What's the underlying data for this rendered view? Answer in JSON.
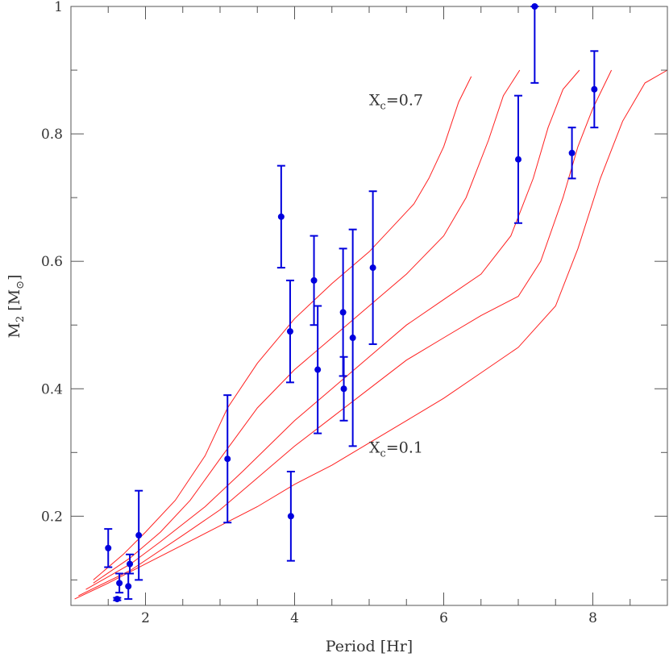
{
  "chart_data": {
    "type": "scatter",
    "xlabel": "Period [Hr]",
    "ylabel_main": "M",
    "ylabel_sub": "2",
    "ylabel_unit_open": " [M",
    "ylabel_unit_sub": "⊙",
    "ylabel_unit_close": "]",
    "xlim": [
      1.0,
      9.0
    ],
    "ylim": [
      0.06,
      1.0
    ],
    "x_ticks": [
      2,
      4,
      6,
      8
    ],
    "y_ticks": [
      0.2,
      0.4,
      0.6,
      0.8,
      1.0
    ],
    "x_tick_labels": [
      "2",
      "4",
      "6",
      "8"
    ],
    "y_tick_labels": [
      "0.2",
      "0.4",
      "0.6",
      "0.8",
      "1"
    ],
    "annotations": [
      {
        "main": "X",
        "sub": "c",
        "rest": "=0.7",
        "x": 5.0,
        "y": 0.845
      },
      {
        "main": "X",
        "sub": "c",
        "rest": "=0.1",
        "x": 5.0,
        "y": 0.3
      }
    ],
    "point_color": "#0000dd",
    "curve_color": "#ff2020",
    "points": [
      {
        "x": 1.5,
        "y": 0.15,
        "lo": 0.12,
        "hi": 0.18
      },
      {
        "x": 1.62,
        "y": 0.07,
        "lo": 0.068,
        "hi": 0.072
      },
      {
        "x": 1.65,
        "y": 0.095,
        "lo": 0.08,
        "hi": 0.11
      },
      {
        "x": 1.77,
        "y": 0.09,
        "lo": 0.07,
        "hi": 0.11
      },
      {
        "x": 1.79,
        "y": 0.125,
        "lo": 0.11,
        "hi": 0.14
      },
      {
        "x": 1.91,
        "y": 0.17,
        "lo": 0.1,
        "hi": 0.24
      },
      {
        "x": 3.1,
        "y": 0.29,
        "lo": 0.19,
        "hi": 0.39
      },
      {
        "x": 3.82,
        "y": 0.67,
        "lo": 0.59,
        "hi": 0.75
      },
      {
        "x": 3.94,
        "y": 0.49,
        "lo": 0.41,
        "hi": 0.57
      },
      {
        "x": 3.95,
        "y": 0.2,
        "lo": 0.13,
        "hi": 0.27
      },
      {
        "x": 4.26,
        "y": 0.57,
        "lo": 0.5,
        "hi": 0.64
      },
      {
        "x": 4.31,
        "y": 0.43,
        "lo": 0.33,
        "hi": 0.53
      },
      {
        "x": 4.65,
        "y": 0.52,
        "lo": 0.42,
        "hi": 0.62
      },
      {
        "x": 4.66,
        "y": 0.4,
        "lo": 0.35,
        "hi": 0.45
      },
      {
        "x": 4.78,
        "y": 0.48,
        "lo": 0.31,
        "hi": 0.65
      },
      {
        "x": 5.05,
        "y": 0.59,
        "lo": 0.47,
        "hi": 0.71
      },
      {
        "x": 7.0,
        "y": 0.76,
        "lo": 0.66,
        "hi": 0.86
      },
      {
        "x": 7.22,
        "y": 1.0,
        "lo": 0.88,
        "hi": 1.0
      },
      {
        "x": 7.72,
        "y": 0.77,
        "lo": 0.73,
        "hi": 0.81
      },
      {
        "x": 8.02,
        "y": 0.87,
        "lo": 0.81,
        "hi": 0.93
      }
    ],
    "curves": [
      [
        [
          1.3,
          0.1
        ],
        [
          1.7,
          0.14
        ],
        [
          2.0,
          0.175
        ],
        [
          2.4,
          0.225
        ],
        [
          2.8,
          0.295
        ],
        [
          3.1,
          0.37
        ],
        [
          3.5,
          0.44
        ],
        [
          4.0,
          0.51
        ],
        [
          4.5,
          0.565
        ],
        [
          5.0,
          0.615
        ],
        [
          5.4,
          0.665
        ],
        [
          5.6,
          0.69
        ],
        [
          5.8,
          0.73
        ],
        [
          6.0,
          0.78
        ],
        [
          6.2,
          0.85
        ],
        [
          6.37,
          0.89
        ]
      ],
      [
        [
          1.3,
          0.095
        ],
        [
          1.8,
          0.135
        ],
        [
          2.2,
          0.175
        ],
        [
          2.6,
          0.225
        ],
        [
          3.0,
          0.29
        ],
        [
          3.5,
          0.37
        ],
        [
          4.0,
          0.43
        ],
        [
          4.5,
          0.48
        ],
        [
          5.0,
          0.53
        ],
        [
          5.5,
          0.58
        ],
        [
          6.0,
          0.64
        ],
        [
          6.3,
          0.7
        ],
        [
          6.6,
          0.79
        ],
        [
          6.8,
          0.86
        ],
        [
          7.02,
          0.9
        ]
      ],
      [
        [
          1.2,
          0.085
        ],
        [
          1.8,
          0.125
        ],
        [
          2.2,
          0.16
        ],
        [
          2.8,
          0.215
        ],
        [
          3.3,
          0.27
        ],
        [
          4.0,
          0.35
        ],
        [
          4.5,
          0.4
        ],
        [
          5.0,
          0.45
        ],
        [
          5.5,
          0.5
        ],
        [
          6.0,
          0.54
        ],
        [
          6.5,
          0.58
        ],
        [
          6.9,
          0.64
        ],
        [
          7.2,
          0.73
        ],
        [
          7.4,
          0.81
        ],
        [
          7.6,
          0.87
        ],
        [
          7.82,
          0.9
        ]
      ],
      [
        [
          1.1,
          0.075
        ],
        [
          1.8,
          0.115
        ],
        [
          2.5,
          0.17
        ],
        [
          3.0,
          0.21
        ],
        [
          3.5,
          0.26
        ],
        [
          4.0,
          0.31
        ],
        [
          4.5,
          0.355
        ],
        [
          5.0,
          0.4
        ],
        [
          5.5,
          0.445
        ],
        [
          6.0,
          0.48
        ],
        [
          6.5,
          0.515
        ],
        [
          7.0,
          0.545
        ],
        [
          7.3,
          0.6
        ],
        [
          7.6,
          0.7
        ],
        [
          7.8,
          0.78
        ],
        [
          8.0,
          0.84
        ],
        [
          8.25,
          0.9
        ]
      ],
      [
        [
          1.05,
          0.07
        ],
        [
          1.5,
          0.095
        ],
        [
          2.0,
          0.125
        ],
        [
          2.5,
          0.155
        ],
        [
          3.0,
          0.185
        ],
        [
          3.5,
          0.215
        ],
        [
          4.0,
          0.25
        ],
        [
          4.5,
          0.28
        ],
        [
          5.0,
          0.315
        ],
        [
          5.5,
          0.35
        ],
        [
          6.0,
          0.385
        ],
        [
          6.5,
          0.425
        ],
        [
          7.0,
          0.465
        ],
        [
          7.5,
          0.53
        ],
        [
          7.8,
          0.62
        ],
        [
          8.1,
          0.73
        ],
        [
          8.4,
          0.82
        ],
        [
          8.7,
          0.88
        ],
        [
          9.0,
          0.9
        ]
      ]
    ]
  }
}
